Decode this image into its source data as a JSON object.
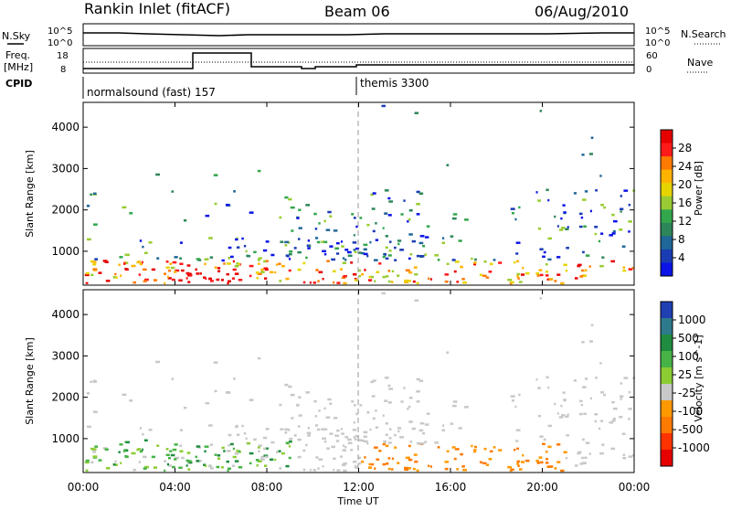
{
  "header": {
    "title": "Rankin Inlet (fitACF)",
    "beam": "Beam 06",
    "date": "06/Aug/2010"
  },
  "panels": {
    "nsky": {
      "label": "N.Sky",
      "right_label": "N.Search",
      "y_ticks": [
        "10^5",
        "10^0"
      ]
    },
    "freq": {
      "label_line1": "Freq.",
      "label_line2": "[MHz]",
      "right_label": "Nave",
      "left_ticks": [
        "18",
        "8"
      ],
      "right_ticks": [
        "60",
        "0"
      ]
    },
    "cpid": {
      "label": "CPID",
      "entries": [
        "normalsound (fast) 157",
        "themis 3300"
      ]
    }
  },
  "power_colorbar": {
    "label": "Power [dB]",
    "ticks": [
      "28",
      "24",
      "20",
      "16",
      "12",
      "8",
      "4"
    ],
    "colors": [
      "#e60000",
      "#ff1a1a",
      "#ff7a00",
      "#ffb300",
      "#e6d400",
      "#99cc33",
      "#33a64d",
      "#2d8659",
      "#1f6699",
      "#1a3cb3",
      "#0a14e6"
    ]
  },
  "velocity_colorbar": {
    "label": "Velocity [m s^-1]",
    "ticks": [
      "1000",
      "500",
      "100",
      "25",
      "-25",
      "-100",
      "-500",
      "-1000"
    ],
    "colors": [
      "#1f3fb3",
      "#2d7a8c",
      "#1f8c3f",
      "#47b347",
      "#8ccc33",
      "#c8c8c8",
      "#ff9900",
      "#ff7a00",
      "#ff3300",
      "#e60000"
    ]
  },
  "axes": {
    "y_label": "Slant Range [km]",
    "y_ticks": [
      "1000",
      "2000",
      "3000",
      "4000"
    ],
    "x_ticks": [
      "00:00",
      "04:00",
      "08:00",
      "12:00",
      "16:00",
      "20:00",
      "00:00"
    ],
    "x_label": "Time UT"
  },
  "chart_data": [
    {
      "type": "heatmap",
      "title": "Power",
      "xlabel": "Time UT",
      "ylabel": "Slant Range [km]",
      "xlim": [
        0,
        24
      ],
      "ylim": [
        180,
        4600
      ],
      "colorbar_label": "Power [dB]",
      "colorbar_range": [
        0,
        30
      ]
    },
    {
      "type": "heatmap",
      "title": "Velocity",
      "xlabel": "Time UT",
      "ylabel": "Slant Range [km]",
      "xlim": [
        0,
        24
      ],
      "ylim": [
        180,
        4600
      ],
      "colorbar_label": "Velocity [m s^-1]",
      "colorbar_range": [
        -1000,
        1000
      ]
    }
  ]
}
